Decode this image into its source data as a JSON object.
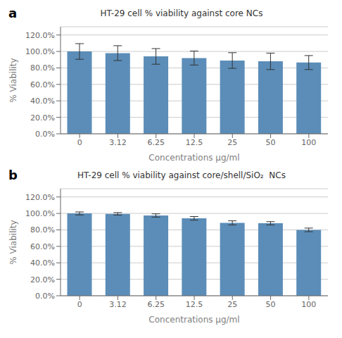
{
  "chart_data": [
    {
      "type": "bar",
      "title": "HT-29 cell % viability against core NCs",
      "annotations": [
        "a"
      ],
      "categories": [
        "0",
        "3.12",
        "6.25",
        "12.5",
        "25",
        "50",
        "100"
      ],
      "values": [
        1.0,
        0.98,
        0.94,
        0.92,
        0.89,
        0.88,
        0.865
      ],
      "errors": [
        0.095,
        0.09,
        0.095,
        0.085,
        0.095,
        0.1,
        0.085
      ],
      "color": "#5B8DB8",
      "xlabel": "Concentrations μg/ml",
      "ylabel": "% Viability",
      "ylim": [
        0,
        1.3
      ],
      "yticks": [
        {
          "value": 0.0,
          "label": "0.0%"
        },
        {
          "value": 0.2,
          "label": "20.0%"
        },
        {
          "value": 0.4,
          "label": "40.0%"
        },
        {
          "value": 0.6,
          "label": "60.0%"
        },
        {
          "value": 0.8,
          "label": "80.0%"
        },
        {
          "value": 1.0,
          "label": "100.0%"
        },
        {
          "value": 1.2,
          "label": "120.0%"
        }
      ],
      "grid": true
    },
    {
      "type": "bar",
      "title": "HT-29 cell % viability against core/shell/SiO₂  NCs",
      "annotations": [
        "b"
      ],
      "categories": [
        "0",
        "3.12",
        "6.25",
        "12.5",
        "25",
        "50",
        "100"
      ],
      "values": [
        1.0,
        0.995,
        0.975,
        0.94,
        0.885,
        0.88,
        0.8
      ],
      "errors": [
        0.018,
        0.015,
        0.02,
        0.022,
        0.025,
        0.02,
        0.022
      ],
      "color": "#5B8DB8",
      "xlabel": "Concentrations μg/ml",
      "ylabel": "% Viability",
      "ylim": [
        0,
        1.3
      ],
      "yticks": [
        {
          "value": 0.0,
          "label": "0.0%"
        },
        {
          "value": 0.2,
          "label": "20.0%"
        },
        {
          "value": 0.4,
          "label": "40.0%"
        },
        {
          "value": 0.6,
          "label": "60.0%"
        },
        {
          "value": 0.8,
          "label": "80.0%"
        },
        {
          "value": 1.0,
          "label": "100.0%"
        },
        {
          "value": 1.2,
          "label": "120.0%"
        }
      ],
      "grid": true
    }
  ]
}
